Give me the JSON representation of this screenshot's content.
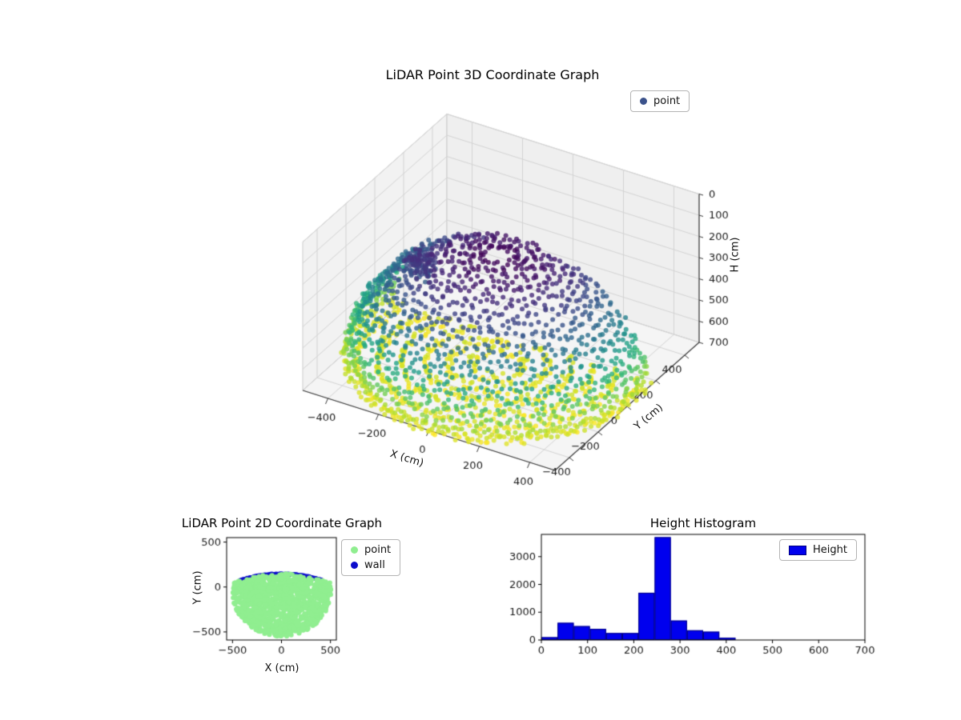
{
  "figure": {
    "background": "#ffffff"
  },
  "chart_data": [
    {
      "id": "lidar3d",
      "type": "scatter3d",
      "title": "LiDAR Point 3D Coordinate Graph",
      "xlabel": "X (cm)",
      "ylabel": "Y (cm)",
      "zlabel": "H (cm)",
      "xlim": [
        -500,
        500
      ],
      "ylim": [
        -500,
        500
      ],
      "zlim": [
        0,
        700
      ],
      "z_inverted": true,
      "xticks": [
        -400,
        -200,
        0,
        200,
        400
      ],
      "yticks": [
        -400,
        -200,
        0,
        200,
        400
      ],
      "zticks": [
        0,
        100,
        200,
        300,
        400,
        500,
        600,
        700
      ],
      "legend": [
        {
          "label": "point",
          "color": "#3b528b"
        }
      ],
      "colormap": "viridis",
      "color_by": "height",
      "point_style": {
        "size": 3,
        "alpha": 0.8
      },
      "cloud_summary": {
        "shape": "hemispherical dome scan clipped by wall plane",
        "dome_radius_cm": 530,
        "dome_center_xy": [
          0,
          -20
        ],
        "floor_h_cm": 700,
        "dome_top_h_cm": 175,
        "wall_y_cm": 150,
        "dome_rings": 22,
        "floor_ring_radii": [
          90,
          170,
          250,
          330,
          410,
          490
        ],
        "wall_cluster": {
          "x": [
            -310,
            -220
          ],
          "y": [
            -140,
            -55
          ],
          "h": [
            220,
            315
          ]
        }
      }
    },
    {
      "id": "lidar2d",
      "type": "scatter",
      "title": "LiDAR Point 2D Coordinate Graph",
      "xlabel": "X (cm)",
      "ylabel": "Y (cm)",
      "xlim": [
        -560,
        560
      ],
      "ylim": [
        -590,
        550
      ],
      "xticks": [
        -500,
        0,
        500
      ],
      "yticks": [
        -500,
        0,
        500
      ],
      "series": [
        {
          "name": "point",
          "color": "#90ee90"
        },
        {
          "name": "wall",
          "color": "#0d0dcc"
        }
      ],
      "blob_summary": {
        "shape": "half-disk of points, flat edge at top",
        "center_xy": [
          0,
          -45
        ],
        "radius_cm": 505,
        "top_edge_y_cm": 148
      }
    },
    {
      "id": "height_hist",
      "type": "bar",
      "title": "Height Histogram",
      "legend": [
        {
          "label": "Height",
          "color": "#0000ee",
          "edge": "#000080"
        }
      ],
      "bin_edges": [
        0,
        35,
        70,
        105,
        140,
        175,
        210,
        245,
        280,
        315,
        350,
        385,
        420
      ],
      "values": [
        100,
        620,
        500,
        400,
        250,
        250,
        1700,
        3700,
        700,
        350,
        300,
        80
      ],
      "xlim": [
        0,
        700
      ],
      "ylim": [
        0,
        3800
      ],
      "xticks": [
        0,
        100,
        200,
        300,
        400,
        500,
        600,
        700
      ],
      "yticks": [
        0,
        1000,
        2000,
        3000
      ]
    }
  ]
}
